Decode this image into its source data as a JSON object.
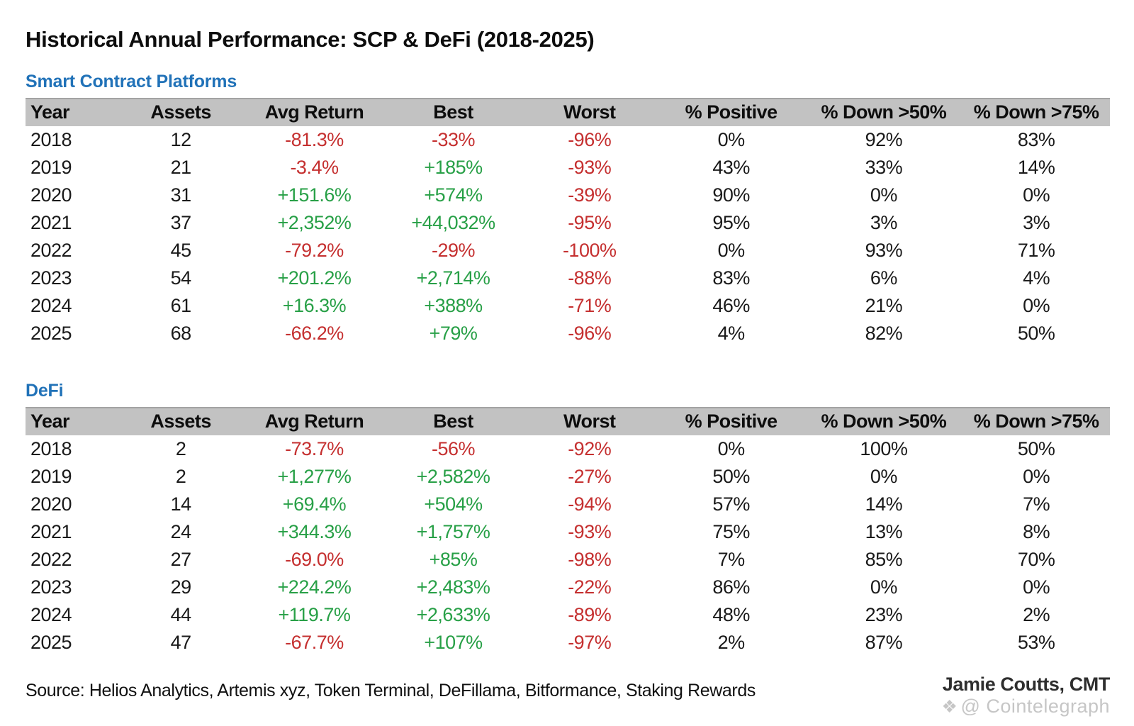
{
  "title": "Historical Annual Performance: SCP & DeFi (2018-2025)",
  "columns": [
    "Year",
    "Assets",
    "Avg Return",
    "Best",
    "Worst",
    "% Positive",
    "% Down >50%",
    "% Down >75%"
  ],
  "colors": {
    "positive_green": "#28a047",
    "negative_red": "#c53030",
    "section_heading_blue": "#2172b8",
    "header_band_gray": "#c2c2c2",
    "watermark_gray": "#c6c6c6"
  },
  "chart_data": [
    {
      "type": "table",
      "title": "Smart Contract Platforms",
      "columns": [
        "Year",
        "Assets",
        "Avg Return",
        "Best",
        "Worst",
        "% Positive",
        "% Down >50%",
        "% Down >75%"
      ],
      "rows": [
        [
          "2018",
          "12",
          "-81.3%",
          "-33%",
          "-96%",
          "0%",
          "92%",
          "83%"
        ],
        [
          "2019",
          "21",
          "-3.4%",
          "+185%",
          "-93%",
          "43%",
          "33%",
          "14%"
        ],
        [
          "2020",
          "31",
          "+151.6%",
          "+574%",
          "-39%",
          "90%",
          "0%",
          "0%"
        ],
        [
          "2021",
          "37",
          "+2,352%",
          "+44,032%",
          "-95%",
          "95%",
          "3%",
          "3%"
        ],
        [
          "2022",
          "45",
          "-79.2%",
          "-29%",
          "-100%",
          "0%",
          "93%",
          "71%"
        ],
        [
          "2023",
          "54",
          "+201.2%",
          "+2,714%",
          "-88%",
          "83%",
          "6%",
          "4%"
        ],
        [
          "2024",
          "61",
          "+16.3%",
          "+388%",
          "-71%",
          "46%",
          "21%",
          "0%"
        ],
        [
          "2025",
          "68",
          "-66.2%",
          "+79%",
          "-96%",
          "4%",
          "82%",
          "50%"
        ]
      ]
    },
    {
      "type": "table",
      "title": "DeFi",
      "columns": [
        "Year",
        "Assets",
        "Avg Return",
        "Best",
        "Worst",
        "% Positive",
        "% Down >50%",
        "% Down >75%"
      ],
      "rows": [
        [
          "2018",
          "2",
          "-73.7%",
          "-56%",
          "-92%",
          "0%",
          "100%",
          "50%"
        ],
        [
          "2019",
          "2",
          "+1,277%",
          "+2,582%",
          "-27%",
          "50%",
          "0%",
          "0%"
        ],
        [
          "2020",
          "14",
          "+69.4%",
          "+504%",
          "-94%",
          "57%",
          "14%",
          "7%"
        ],
        [
          "2021",
          "24",
          "+344.3%",
          "+1,757%",
          "-93%",
          "75%",
          "13%",
          "8%"
        ],
        [
          "2022",
          "27",
          "-69.0%",
          "+85%",
          "-98%",
          "7%",
          "85%",
          "70%"
        ],
        [
          "2023",
          "29",
          "+224.2%",
          "+2,483%",
          "-22%",
          "86%",
          "0%",
          "0%"
        ],
        [
          "2024",
          "44",
          "+119.7%",
          "+2,633%",
          "-89%",
          "48%",
          "23%",
          "2%"
        ],
        [
          "2025",
          "47",
          "-67.7%",
          "+107%",
          "-97%",
          "2%",
          "87%",
          "53%"
        ]
      ]
    }
  ],
  "footer": {
    "source": "Source: Helios Analytics, Artemis xyz, Token Terminal, DeFillama, Bitformance, Staking Rewards",
    "credit": "Jamie Coutts, CMT",
    "watermark_icon": "cointelegraph-logo",
    "watermark": "@ Cointelegraph"
  }
}
